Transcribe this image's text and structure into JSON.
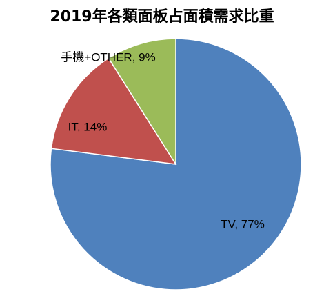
{
  "chart_data": {
    "type": "pie",
    "title": "2019年各類面板占面積需求比重",
    "slices": [
      {
        "label": "TV",
        "value": 77,
        "display": "TV, 77%",
        "color": "#4F81BD"
      },
      {
        "label": "IT",
        "value": 14,
        "display": "IT, 14%",
        "color": "#C0504D"
      },
      {
        "label": "手機+OTHER",
        "value": 9,
        "display": "手機+OTHER, 9%",
        "color": "#9BBB59"
      }
    ],
    "start_angle_deg": 0,
    "direction": "clockwise",
    "legend": "none"
  }
}
